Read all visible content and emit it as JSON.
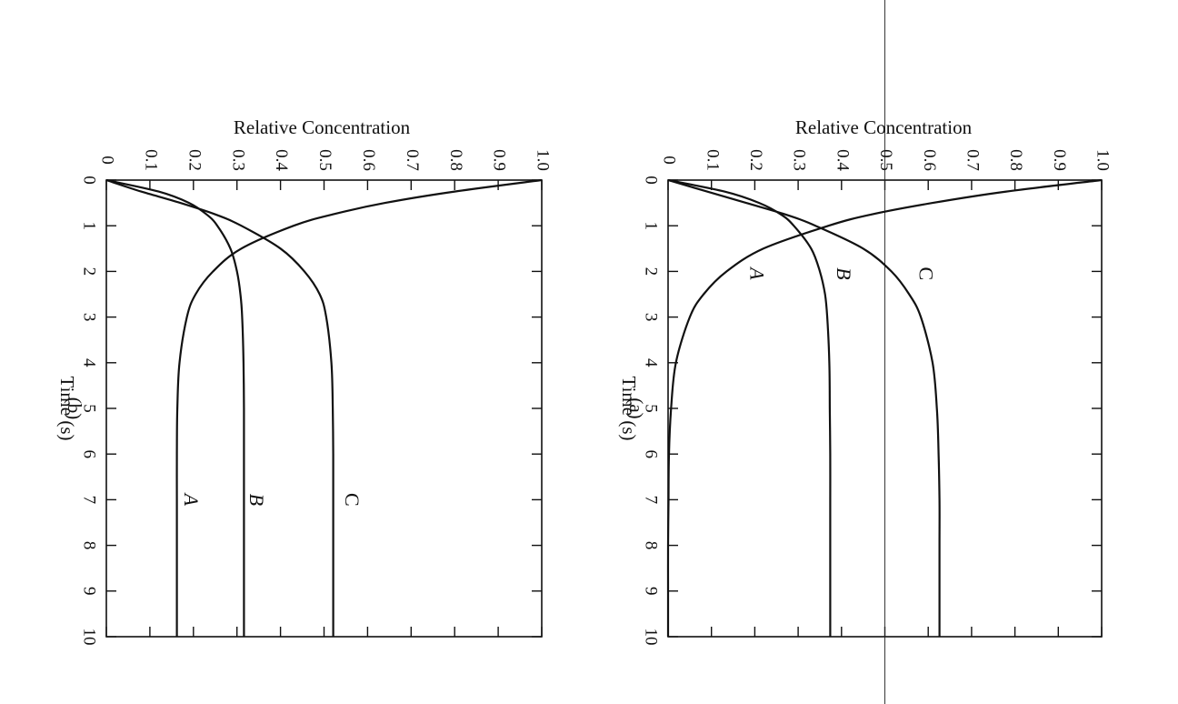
{
  "chart_data": [
    {
      "id": "a",
      "type": "line",
      "caption": "(a)",
      "xlabel": "Time (s)",
      "ylabel": "Relative Concentration",
      "xlim": [
        0,
        10
      ],
      "ylim": [
        0,
        1.0
      ],
      "xticks": [
        "0",
        "1",
        "2",
        "3",
        "4",
        "5",
        "6",
        "7",
        "8",
        "9",
        "10"
      ],
      "yticks": [
        "0",
        "0.1",
        "0.2",
        "0.3",
        "0.4",
        "0.5",
        "0.6",
        "0.7",
        "0.8",
        "0.9",
        "1.0"
      ],
      "reference_line_y": 0.5,
      "orientation": "rotated 90° clockwise",
      "x": [
        0,
        0.25,
        0.5,
        0.75,
        1,
        1.5,
        2,
        2.5,
        3,
        4,
        5,
        6,
        7,
        8,
        9,
        10
      ],
      "series": [
        {
          "name": "A",
          "values": [
            1.0,
            0.78,
            0.61,
            0.47,
            0.37,
            0.22,
            0.135,
            0.082,
            0.05,
            0.018,
            0.007,
            0.002,
            0.001,
            0,
            0,
            0
          ]
        },
        {
          "name": "B",
          "values": [
            0,
            0.13,
            0.21,
            0.26,
            0.29,
            0.33,
            0.35,
            0.362,
            0.367,
            0.372,
            0.373,
            0.374,
            0.374,
            0.374,
            0.374,
            0.374
          ]
        },
        {
          "name": "C",
          "values": [
            0,
            0.09,
            0.18,
            0.27,
            0.34,
            0.45,
            0.515,
            0.556,
            0.583,
            0.61,
            0.62,
            0.624,
            0.626,
            0.626,
            0.626,
            0.626
          ]
        }
      ],
      "labels": [
        {
          "series": "A",
          "text": "A",
          "x": 2.05,
          "y": 0.2
        },
        {
          "series": "B",
          "text": "B",
          "x": 2.05,
          "y": 0.4
        },
        {
          "series": "C",
          "text": "C",
          "x": 2.05,
          "y": 0.59
        }
      ]
    },
    {
      "id": "b",
      "type": "line",
      "caption": "(b)",
      "xlabel": "Time (s)",
      "ylabel": "Relative Concentration",
      "xlim": [
        0,
        10
      ],
      "ylim": [
        0,
        1.0
      ],
      "xticks": [
        "0",
        "1",
        "2",
        "3",
        "4",
        "5",
        "6",
        "7",
        "8",
        "9",
        "10"
      ],
      "yticks": [
        "0",
        "0.1",
        "0.2",
        "0.3",
        "0.4",
        "0.5",
        "0.6",
        "0.7",
        "0.8",
        "0.9",
        "1.0"
      ],
      "orientation": "rotated 90° clockwise",
      "x": [
        0,
        0.25,
        0.5,
        0.75,
        1,
        1.5,
        2,
        2.5,
        3,
        4,
        5,
        6,
        7,
        8,
        9,
        10
      ],
      "series": [
        {
          "name": "A",
          "values": [
            1.0,
            0.8,
            0.64,
            0.52,
            0.43,
            0.31,
            0.245,
            0.205,
            0.185,
            0.168,
            0.163,
            0.162,
            0.162,
            0.162,
            0.162,
            0.162
          ]
        },
        {
          "name": "B",
          "values": [
            0,
            0.12,
            0.19,
            0.23,
            0.255,
            0.285,
            0.3,
            0.308,
            0.312,
            0.315,
            0.316,
            0.316,
            0.316,
            0.316,
            0.316,
            0.316
          ]
        },
        {
          "name": "C",
          "values": [
            0,
            0.08,
            0.17,
            0.25,
            0.31,
            0.4,
            0.455,
            0.49,
            0.505,
            0.517,
            0.52,
            0.521,
            0.521,
            0.521,
            0.521,
            0.521
          ]
        }
      ],
      "labels": [
        {
          "series": "A",
          "text": "A",
          "x": 7.0,
          "y": 0.19
        },
        {
          "series": "B",
          "text": "B",
          "x": 7.0,
          "y": 0.34
        },
        {
          "series": "C",
          "text": "C",
          "x": 7.0,
          "y": 0.56
        }
      ]
    }
  ]
}
